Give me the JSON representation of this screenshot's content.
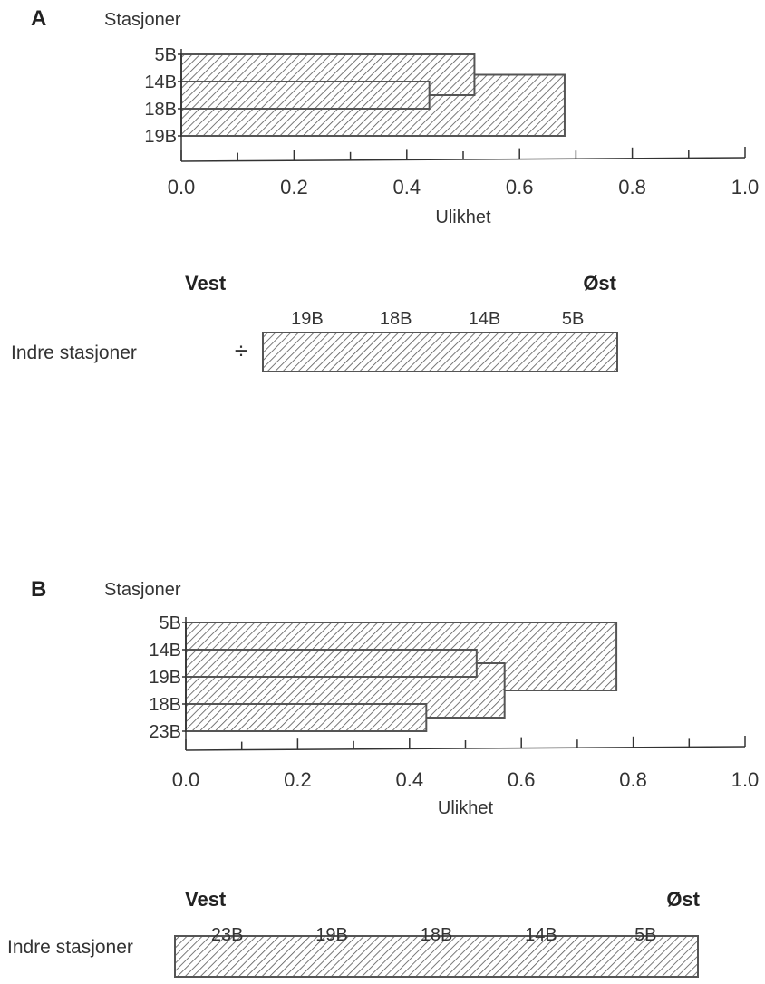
{
  "chart_data": [
    {
      "type": "dendrogram",
      "panel_label": "A",
      "ylabel": "Stasjoner",
      "xlabel": "Ulikhet",
      "xlim": [
        0.0,
        1.0
      ],
      "ticks": [
        "0.0",
        "0.2",
        "0.4",
        "0.6",
        "0.8",
        "1.0"
      ],
      "leaves": [
        "5B",
        "14B",
        "18B",
        "19B"
      ],
      "merges": [
        {
          "a": 1,
          "b": 2,
          "height": 0.44
        },
        {
          "a": 0,
          "b": 4,
          "height": 0.52
        },
        {
          "a": 5,
          "b": 3,
          "height": 0.68
        }
      ],
      "strip": {
        "west_label": "Vest",
        "east_label": "Øst",
        "row_label": "Indre stasjoner",
        "row_symbol": "÷",
        "stations": [
          "19B",
          "18B",
          "14B",
          "5B"
        ]
      }
    },
    {
      "type": "dendrogram",
      "panel_label": "B",
      "ylabel": "Stasjoner",
      "xlabel": "Ulikhet",
      "xlim": [
        0.0,
        1.0
      ],
      "ticks": [
        "0.0",
        "0.2",
        "0.4",
        "0.6",
        "0.8",
        "1.0"
      ],
      "leaves": [
        "5B",
        "14B",
        "19B",
        "18B",
        "23B"
      ],
      "merges": [
        {
          "a": 3,
          "b": 4,
          "height": 0.43
        },
        {
          "a": 1,
          "b": 2,
          "height": 0.52
        },
        {
          "a": 6,
          "b": 5,
          "height": 0.57
        },
        {
          "a": 0,
          "b": 7,
          "height": 0.77
        }
      ],
      "strip": {
        "west_label": "Vest",
        "east_label": "Øst",
        "row_label": "Indre stasjoner",
        "row_symbol": "",
        "stations": [
          "23B",
          "19B",
          "18B",
          "14B",
          "5B"
        ]
      }
    }
  ]
}
